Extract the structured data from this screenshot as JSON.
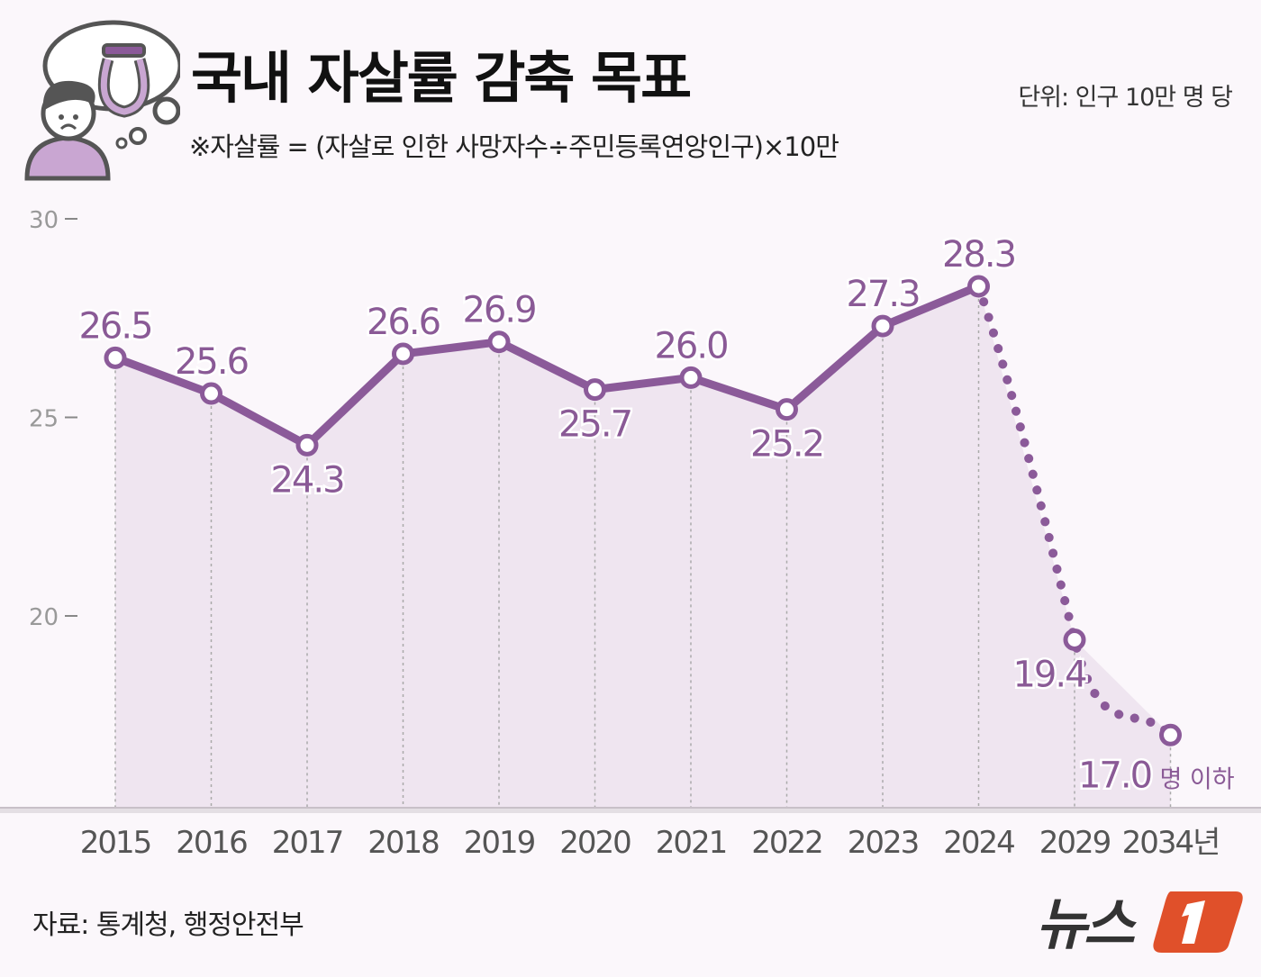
{
  "header": {
    "title": "국내 자살률 감축 목표",
    "subtitle": "※자살률 = (자살로 인한 사망자수÷주민등록연앙인구)×10만",
    "unit": "단위: 인구 10만 명 당"
  },
  "footer": {
    "source": "자료: 통계청, 행정안전부",
    "logo_text": "뉴스1"
  },
  "colors": {
    "line": "#8b5a99",
    "label": "#8a5a96",
    "fill": "#efe5f0",
    "background": "#fbf7fb",
    "logo_accent": "#e0502a"
  },
  "icon": "person-thinking-of-noose-icon",
  "chart_data": {
    "type": "line",
    "title": "국내 자살률 감축 목표",
    "categories": [
      "2015",
      "2016",
      "2017",
      "2018",
      "2019",
      "2020",
      "2021",
      "2022",
      "2023",
      "2024",
      "2029",
      "2034년"
    ],
    "values": [
      26.5,
      25.6,
      24.3,
      26.6,
      26.9,
      25.7,
      26.0,
      25.2,
      27.3,
      28.3,
      19.4,
      17.0
    ],
    "value_labels": [
      "26.5",
      "25.6",
      "24.3",
      "26.6",
      "26.9",
      "25.7",
      "26.0",
      "25.2",
      "27.3",
      "28.3",
      "19.4",
      "17.0"
    ],
    "last_label_suffix": "명 이하",
    "actual_through": "2024",
    "target_style": "dotted",
    "yticks": [
      20,
      25,
      30
    ],
    "ylim": [
      15.1,
      30
    ],
    "grid": false
  }
}
